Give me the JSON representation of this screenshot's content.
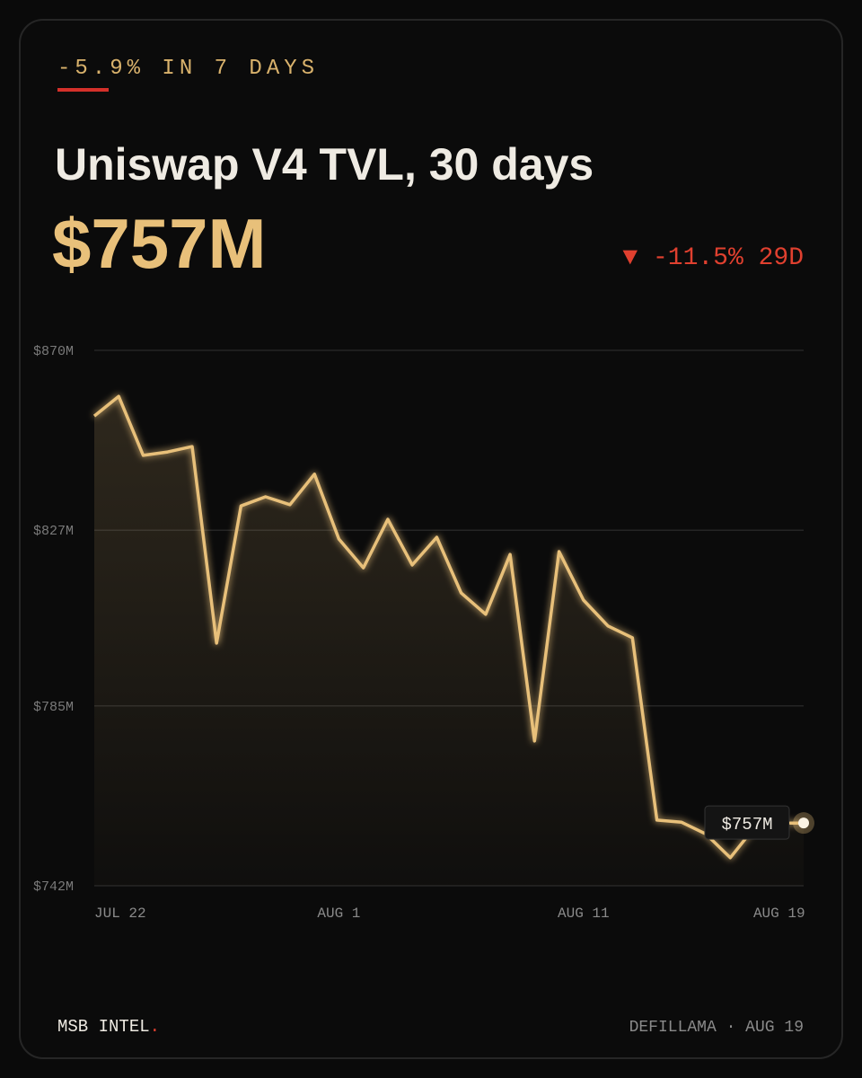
{
  "tag": "-5.9% IN 7 DAYS",
  "title": "Uniswap V4 TVL, 30 days",
  "value": "$757M",
  "change": "▼ -11.5% 29D",
  "footer": {
    "brand": "MSB INTEL",
    "brand_mark": ".",
    "source": "DEFILLAMA · AUG 19"
  },
  "chart_data": {
    "type": "line",
    "categories": [
      "JUL 22",
      null,
      null,
      null,
      null,
      null,
      null,
      null,
      null,
      null,
      "AUG 1",
      null,
      null,
      null,
      null,
      null,
      null,
      null,
      null,
      null,
      "AUG 11",
      null,
      null,
      null,
      null,
      null,
      null,
      null,
      "AUG 19",
      null
    ],
    "series": [
      {
        "name": "TVL",
        "color": "#e8c07a",
        "values": [
          854.3,
          859.0,
          844.9,
          845.7,
          847.0,
          800.0,
          832.8,
          835.0,
          833.1,
          840.4,
          824.9,
          818.0,
          829.6,
          818.7,
          825.3,
          812.0,
          806.9,
          821.2,
          776.6,
          821.9,
          810.3,
          804.1,
          801.3,
          757.7,
          757.2,
          754.4,
          748.7,
          756,
          757,
          757
        ],
        "value_labels": [
          null,
          null,
          null,
          null,
          null,
          null,
          null,
          null,
          null,
          null,
          null,
          null,
          null,
          null,
          null,
          null,
          null,
          null,
          null,
          null,
          null,
          null,
          null,
          null,
          null,
          null,
          null,
          null,
          null,
          "$757M"
        ]
      }
    ],
    "ylim": [
      742,
      870
    ],
    "yticks": [
      {
        "value": 742,
        "label": "$742M"
      },
      {
        "value": 785,
        "label": "$785M"
      },
      {
        "value": 827,
        "label": "$827M"
      },
      {
        "value": 870,
        "label": "$870M"
      }
    ],
    "grid": true
  }
}
